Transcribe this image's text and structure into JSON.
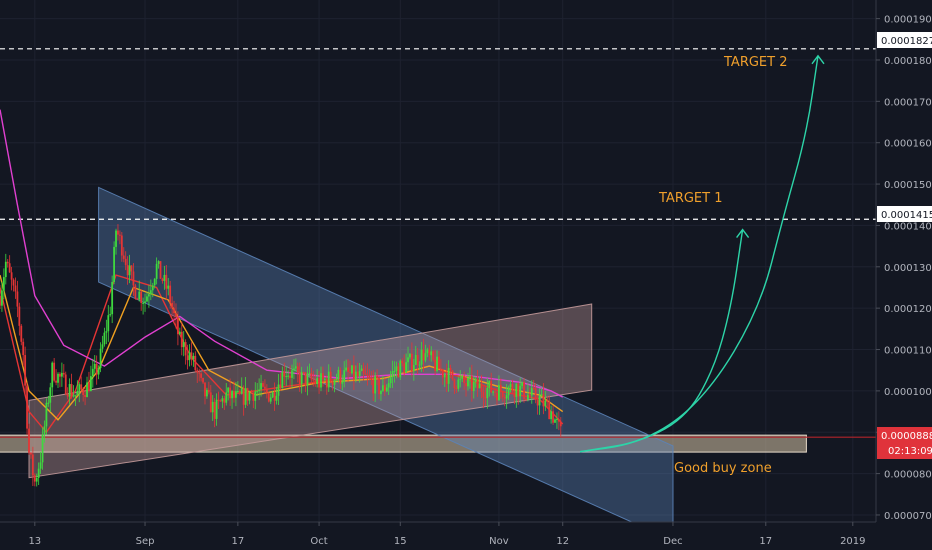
{
  "chart_data": {
    "type": "candlestick",
    "title": "",
    "y_axis": {
      "ylim": [
        6.83e-05,
        0.0001945
      ],
      "ticks": [
        "0.0000700",
        "0.0000800",
        "0.0000900",
        "0.0001000",
        "0.0001100",
        "0.0001200",
        "0.0001300",
        "0.0001400",
        "0.0001500",
        "0.0001600",
        "0.0001700",
        "0.0001800",
        "0.0001900"
      ]
    },
    "x_axis": {
      "xlim": [
        "2018-08-07",
        "2019-01-05"
      ],
      "ticks": [
        {
          "label": "13",
          "date": "2018-08-13"
        },
        {
          "label": "Sep",
          "date": "2018-09-01"
        },
        {
          "label": "17",
          "date": "2018-09-17"
        },
        {
          "label": "Oct",
          "date": "2018-10-01"
        },
        {
          "label": "15",
          "date": "2018-10-15"
        },
        {
          "label": "Nov",
          "date": "2018-11-01"
        },
        {
          "label": "12",
          "date": "2018-11-12"
        },
        {
          "label": "Dec",
          "date": "2018-12-01"
        },
        {
          "label": "17",
          "date": "2018-12-17"
        },
        {
          "label": "2019",
          "date": "2019-01-01"
        }
      ]
    },
    "horizontal_levels": [
      {
        "value": 0.0001827,
        "label": "0.0001827",
        "style": "dashed",
        "color": "#ffffff"
      },
      {
        "value": 0.0001415,
        "label": "0.0001415",
        "style": "dashed",
        "color": "#ffffff"
      },
      {
        "value": 8.88e-05,
        "label": "0.0000888",
        "style": "solid",
        "color": "#b2242b"
      }
    ],
    "price_badge": {
      "price": "0.0000888",
      "countdown": "02:13:09",
      "color": "#e0333b"
    },
    "annotations": [
      {
        "text": "TARGET 2",
        "color": "#f0a02c"
      },
      {
        "text": "TARGET 1",
        "color": "#f0a02c"
      },
      {
        "text": "Good buy zone",
        "color": "#f0a02c"
      }
    ],
    "zones": [
      {
        "name": "Good buy zone",
        "from": "2018-08-06",
        "to": "2018-12-24",
        "low": 8.52e-05,
        "high": 8.93e-05,
        "color": "#d6c2a4"
      }
    ],
    "channels": [
      {
        "name": "descending",
        "color": "#5b83b8",
        "upper": [
          [
            "2018-08-24",
            0.0001492
          ],
          [
            "2018-12-01",
            8.67e-05
          ]
        ],
        "lower": [
          [
            "2018-08-24",
            0.0001263
          ],
          [
            "2018-12-01",
            6.38e-05
          ]
        ]
      },
      {
        "name": "ascending",
        "color": "#c49a9a",
        "upper": [
          [
            "2018-08-12",
            9.77e-05
          ],
          [
            "2018-11-17",
            0.000121
          ]
        ],
        "lower": [
          [
            "2018-08-12",
            7.9e-05
          ],
          [
            "2018-11-17",
            0.0001002
          ]
        ]
      }
    ],
    "projections": [
      {
        "name": "TARGET 1 arrow",
        "color": "#2dd4a8",
        "points": [
          [
            "2018-11-15",
            8.53e-05
          ],
          [
            "2018-11-24",
            8.7e-05
          ],
          [
            "2018-12-03",
            9.3e-05
          ],
          [
            "2018-12-08",
            0.000105
          ],
          [
            "2018-12-11",
            0.00012
          ],
          [
            "2018-12-13",
            0.000139
          ]
        ]
      },
      {
        "name": "TARGET 2 arrow",
        "color": "#2dd4a8",
        "points": [
          [
            "2018-11-15",
            8.53e-05
          ],
          [
            "2018-11-27",
            8.8e-05
          ],
          [
            "2018-12-07",
            9.9e-05
          ],
          [
            "2018-12-16",
            0.00012
          ],
          [
            "2018-12-20",
            0.000142
          ],
          [
            "2018-12-24",
            0.000162
          ],
          [
            "2018-12-26",
            0.000181
          ]
        ]
      }
    ],
    "price_series": {
      "name": "",
      "up_color": "#3fd93f",
      "down_color": "#e53535",
      "points": [
        [
          "2018-08-07",
          0.000123
        ],
        [
          "2018-08-08",
          0.000131
        ],
        [
          "2018-08-09",
          0.000126
        ],
        [
          "2018-08-10",
          0.00012
        ],
        [
          "2018-08-11",
          0.000109
        ],
        [
          "2018-08-12",
          8.5e-05
        ],
        [
          "2018-08-13",
          7.8e-05
        ],
        [
          "2018-08-14",
          8.4e-05
        ],
        [
          "2018-08-15",
          9.5e-05
        ],
        [
          "2018-08-16",
          0.000105
        ],
        [
          "2018-08-18",
          0.000102
        ],
        [
          "2018-08-20",
          9.9e-05
        ],
        [
          "2018-08-22",
          0.000101
        ],
        [
          "2018-08-24",
          0.000106
        ],
        [
          "2018-08-26",
          0.00012
        ],
        [
          "2018-08-27",
          0.000139
        ],
        [
          "2018-08-28",
          0.000135
        ],
        [
          "2018-08-30",
          0.000125
        ],
        [
          "2018-09-01",
          0.000122
        ],
        [
          "2018-09-03",
          0.00013
        ],
        [
          "2018-09-05",
          0.000124
        ],
        [
          "2018-09-07",
          0.000112
        ],
        [
          "2018-09-09",
          0.000108
        ],
        [
          "2018-09-11",
          0.0001
        ],
        [
          "2018-09-13",
          9.5e-05
        ],
        [
          "2018-09-15",
          9.9e-05
        ],
        [
          "2018-09-17",
          9.8e-05
        ],
        [
          "2018-09-20",
          0.0001
        ],
        [
          "2018-09-23",
          9.9e-05
        ],
        [
          "2018-09-25",
          0.000105
        ],
        [
          "2018-09-28",
          0.000103
        ],
        [
          "2018-10-01",
          0.000102
        ],
        [
          "2018-10-03",
          0.000103
        ],
        [
          "2018-10-06",
          0.000104
        ],
        [
          "2018-10-09",
          0.000103
        ],
        [
          "2018-10-12",
          0.0001
        ],
        [
          "2018-10-14",
          0.000105
        ],
        [
          "2018-10-17",
          0.000107
        ],
        [
          "2018-10-19",
          0.000109
        ],
        [
          "2018-10-22",
          0.000105
        ],
        [
          "2018-10-25",
          0.000102
        ],
        [
          "2018-10-28",
          0.000101
        ],
        [
          "2018-11-01",
          0.0001
        ],
        [
          "2018-11-04",
          0.000101
        ],
        [
          "2018-11-06",
          9.9e-05
        ],
        [
          "2018-11-08",
          9.8e-05
        ],
        [
          "2018-11-10",
          9.5e-05
        ],
        [
          "2018-11-12",
          8.88e-05
        ]
      ]
    },
    "moving_averages": [
      {
        "name": "",
        "color": "#e53535",
        "points": [
          [
            "2018-08-07",
            0.000125
          ],
          [
            "2018-08-12",
            9.5e-05
          ],
          [
            "2018-08-15",
            9e-05
          ],
          [
            "2018-08-20",
            0.0001
          ],
          [
            "2018-08-27",
            0.000128
          ],
          [
            "2018-09-03",
            0.000125
          ],
          [
            "2018-09-09",
            0.000108
          ],
          [
            "2018-09-15",
            9.9e-05
          ],
          [
            "2018-09-25",
            0.000101
          ],
          [
            "2018-10-05",
            0.000103
          ],
          [
            "2018-10-15",
            0.000104
          ],
          [
            "2018-10-20",
            0.000106
          ],
          [
            "2018-11-01",
            0.0001
          ],
          [
            "2018-11-08",
            9.8e-05
          ],
          [
            "2018-11-12",
            9.2e-05
          ]
        ]
      },
      {
        "name": "",
        "color": "#f0a020",
        "points": [
          [
            "2018-08-07",
            0.000128
          ],
          [
            "2018-08-12",
            0.0001
          ],
          [
            "2018-08-17",
            9.3e-05
          ],
          [
            "2018-08-24",
            0.000105
          ],
          [
            "2018-08-30",
            0.000125
          ],
          [
            "2018-09-05",
            0.000122
          ],
          [
            "2018-09-12",
            0.000105
          ],
          [
            "2018-09-20",
            9.9e-05
          ],
          [
            "2018-10-01",
            0.000102
          ],
          [
            "2018-10-12",
            0.000103
          ],
          [
            "2018-10-20",
            0.000106
          ],
          [
            "2018-11-01",
            0.000101
          ],
          [
            "2018-11-08",
            9.9e-05
          ],
          [
            "2018-11-12",
            9.5e-05
          ]
        ]
      },
      {
        "name": "",
        "color": "#e040d0",
        "points": [
          [
            "2018-08-07",
            0.000168
          ],
          [
            "2018-08-10",
            0.000145
          ],
          [
            "2018-08-13",
            0.000123
          ],
          [
            "2018-08-18",
            0.000111
          ],
          [
            "2018-08-25",
            0.000106
          ],
          [
            "2018-09-01",
            0.000113
          ],
          [
            "2018-09-07",
            0.000118
          ],
          [
            "2018-09-13",
            0.000112
          ],
          [
            "2018-09-22",
            0.000105
          ],
          [
            "2018-10-05",
            0.000103
          ],
          [
            "2018-10-15",
            0.000104
          ],
          [
            "2018-10-25",
            0.000104
          ],
          [
            "2018-11-05",
            0.000102
          ],
          [
            "2018-11-10",
            0.0001
          ],
          [
            "2018-11-12",
            9.85e-05
          ]
        ]
      }
    ]
  }
}
